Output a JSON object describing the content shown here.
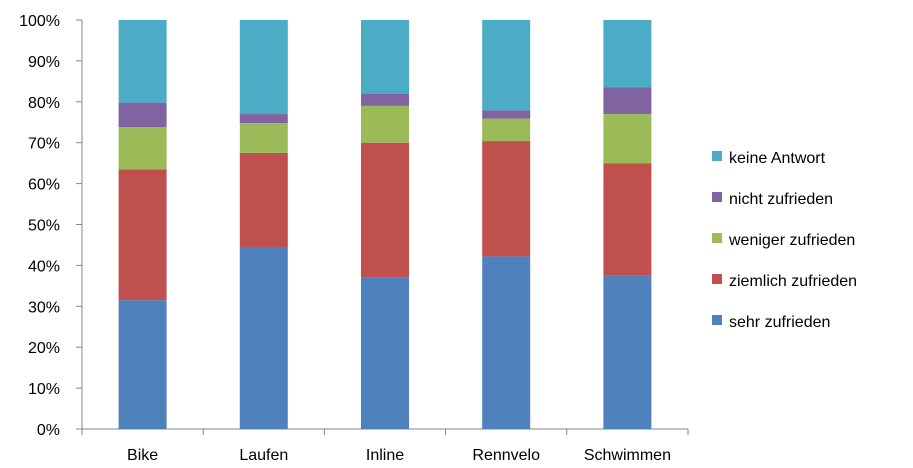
{
  "chart_data": {
    "type": "bar",
    "stacked": true,
    "percent_stacked": true,
    "categories": [
      "Bike",
      "Laufen",
      "Inline",
      "Rennvelo",
      "Schwimmen"
    ],
    "series": [
      {
        "name": "sehr zufrieden",
        "color": "#4F81BD",
        "values": [
          31.5,
          44.5,
          37.0,
          42.2,
          37.5
        ]
      },
      {
        "name": "ziemlich zufrieden",
        "color": "#C0504D",
        "values": [
          32.0,
          23.0,
          33.0,
          28.2,
          27.5
        ]
      },
      {
        "name": "weniger zufrieden",
        "color": "#9BBB59",
        "values": [
          10.3,
          7.3,
          9.0,
          5.5,
          12.0
        ]
      },
      {
        "name": "nicht zufrieden",
        "color": "#8064A2",
        "values": [
          6.0,
          2.2,
          3.0,
          2.0,
          6.5
        ]
      },
      {
        "name": "keine Antwort",
        "color": "#4BACC6",
        "values": [
          20.2,
          23.0,
          18.0,
          22.1,
          16.5
        ]
      }
    ],
    "ylim": [
      0,
      100
    ],
    "y_ticks": [
      "0%",
      "10%",
      "20%",
      "30%",
      "40%",
      "50%",
      "60%",
      "70%",
      "80%",
      "90%",
      "100%"
    ],
    "grid": false,
    "legend_position": "right"
  }
}
